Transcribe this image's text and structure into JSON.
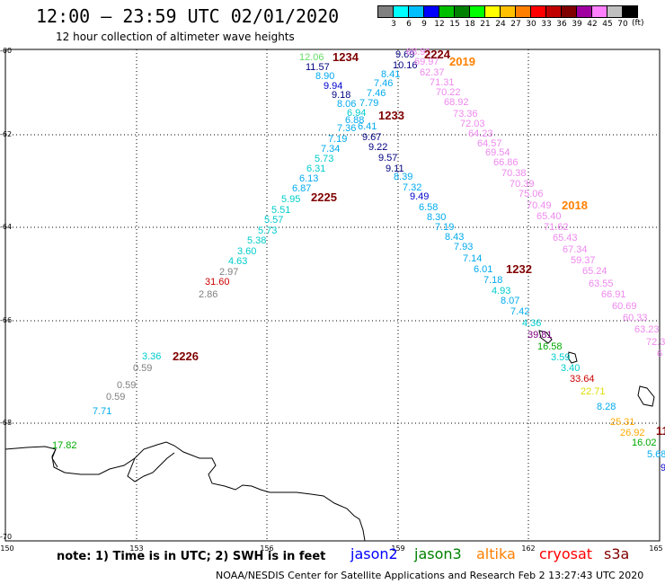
{
  "header": {
    "title": "12:00 – 23:59 UTC 02/01/2020",
    "subtitle": "12 hour collection of altimeter wave heights"
  },
  "colorbar": {
    "unit": "(ft)",
    "colors": [
      "#808080",
      "#00ffff",
      "#00bfff",
      "#0000ff",
      "#00c000",
      "#008000",
      "#00ff00",
      "#ffff00",
      "#ffc000",
      "#ff8000",
      "#ff0000",
      "#c00000",
      "#800000",
      "#a000a0",
      "#ff80ff",
      "#c0c0c0",
      "#000000"
    ],
    "labels": [
      "3",
      "6",
      "9",
      "12",
      "15",
      "18",
      "21",
      "24",
      "27",
      "30",
      "33",
      "36",
      "39",
      "42",
      "45",
      "70"
    ]
  },
  "axes": {
    "lat_labels": [
      "-60",
      "-62",
      "-64",
      "-66",
      "-68",
      "-70"
    ],
    "lon_labels": [
      "150",
      "153",
      "156",
      "159",
      "162",
      "165"
    ]
  },
  "legend": {
    "note": "note:  1) Time is in UTC;  2) SWH is in feet",
    "satellites": [
      {
        "name": "jason2",
        "color": "#0000ff"
      },
      {
        "name": "jason3",
        "color": "#008000"
      },
      {
        "name": "altika",
        "color": "#ff8000"
      },
      {
        "name": "cryosat",
        "color": "#ff0000"
      },
      {
        "name": "s3a",
        "color": "#800000"
      }
    ]
  },
  "credit": "NOAA/NESDIS Center for Satellite Applications and Research   Feb  2 13:27:43 UTC 2020",
  "passes": [
    {
      "label": "1234",
      "color": "#800000"
    },
    {
      "label": "2224",
      "color": "#800000"
    },
    {
      "label": "2019",
      "color": "#ff8000"
    },
    {
      "label": "1233",
      "color": "#800000"
    },
    {
      "label": "2225",
      "color": "#800000"
    },
    {
      "label": "2018",
      "color": "#ff8000"
    },
    {
      "label": "1232",
      "color": "#800000"
    },
    {
      "label": "2226",
      "color": "#800000"
    },
    {
      "label": "11",
      "color": "#800000"
    }
  ],
  "points": [
    {
      "v": "12.06",
      "c": "#66dd66"
    },
    {
      "v": "11.57",
      "c": "#000080"
    },
    {
      "v": "8.90",
      "c": "#00aaee"
    },
    {
      "v": "9.94",
      "c": "#0000cc"
    },
    {
      "v": "9.18",
      "c": "#000080"
    },
    {
      "v": "8.06",
      "c": "#00aaee"
    },
    {
      "v": "6.94",
      "c": "#00cccc"
    },
    {
      "v": "6.88",
      "c": "#00aaee"
    },
    {
      "v": "7.36",
      "c": "#00aaee"
    },
    {
      "v": "7.19",
      "c": "#00aaee"
    },
    {
      "v": "7.34",
      "c": "#00aaee"
    },
    {
      "v": "5.73",
      "c": "#00cccc"
    },
    {
      "v": "6.31",
      "c": "#00cccc"
    },
    {
      "v": "6.13",
      "c": "#00aaee"
    },
    {
      "v": "6.87",
      "c": "#00aaee"
    },
    {
      "v": "5.95",
      "c": "#00cccc"
    },
    {
      "v": "5.51",
      "c": "#00cccc"
    },
    {
      "v": "5.57",
      "c": "#00cccc"
    },
    {
      "v": "5.73",
      "c": "#00cccc"
    },
    {
      "v": "5.38",
      "c": "#00cccc"
    },
    {
      "v": "3.60",
      "c": "#00cccc"
    },
    {
      "v": "4.63",
      "c": "#00cccc"
    },
    {
      "v": "2.97",
      "c": "#808080"
    },
    {
      "v": "31.60",
      "c": "#cc0000"
    },
    {
      "v": "2.86",
      "c": "#808080"
    },
    {
      "v": "3.36",
      "c": "#00cccc"
    },
    {
      "v": "0.59",
      "c": "#808080"
    },
    {
      "v": "0.59",
      "c": "#808080"
    },
    {
      "v": "0.59",
      "c": "#808080"
    },
    {
      "v": "7.71",
      "c": "#00aaee"
    },
    {
      "v": "17.82",
      "c": "#00aa00"
    },
    {
      "v": "9.69",
      "c": "#000080"
    },
    {
      "v": "10.16",
      "c": "#000080"
    },
    {
      "v": "8.41",
      "c": "#00aaee"
    },
    {
      "v": "7.46",
      "c": "#00aaee"
    },
    {
      "v": "7.46",
      "c": "#00aaee"
    },
    {
      "v": "7.79",
      "c": "#00aaee"
    },
    {
      "v": "6.41",
      "c": "#00aaee"
    },
    {
      "v": "9.67",
      "c": "#000080"
    },
    {
      "v": "9.22",
      "c": "#000080"
    },
    {
      "v": "9.57",
      "c": "#000080"
    },
    {
      "v": "9.11",
      "c": "#000080"
    },
    {
      "v": "8.39",
      "c": "#00aaee"
    },
    {
      "v": "7.32",
      "c": "#00aaee"
    },
    {
      "v": "9.49",
      "c": "#0000cc"
    },
    {
      "v": "6.58",
      "c": "#00aaee"
    },
    {
      "v": "8.30",
      "c": "#00aaee"
    },
    {
      "v": "7.19",
      "c": "#00aaee"
    },
    {
      "v": "8.43",
      "c": "#00aaee"
    },
    {
      "v": "7.93",
      "c": "#00aaee"
    },
    {
      "v": "7.14",
      "c": "#00aaee"
    },
    {
      "v": "6.01",
      "c": "#00aaee"
    },
    {
      "v": "7.18",
      "c": "#00aaee"
    },
    {
      "v": "4.93",
      "c": "#00cccc"
    },
    {
      "v": "8.07",
      "c": "#00aaee"
    },
    {
      "v": "7.42",
      "c": "#00aaee"
    },
    {
      "v": "4.36",
      "c": "#00cccc"
    },
    {
      "v": "39.81",
      "c": "#800080"
    },
    {
      "v": "16.58",
      "c": "#00aa00"
    },
    {
      "v": "3.59",
      "c": "#00cccc"
    },
    {
      "v": "3.40",
      "c": "#00cccc"
    },
    {
      "v": "33.64",
      "c": "#cc0000"
    },
    {
      "v": "22.71",
      "c": "#dddd00"
    },
    {
      "v": "8.28",
      "c": "#00aaee"
    },
    {
      "v": "25.31",
      "c": "#ffaa00"
    },
    {
      "v": "26.92",
      "c": "#ffaa00"
    },
    {
      "v": "16.02",
      "c": "#00aa00"
    },
    {
      "v": "5.68",
      "c": "#00aaee"
    },
    {
      "v": "9",
      "c": "#0000cc"
    },
    {
      "v": "68.91",
      "c": "#ee88ee"
    },
    {
      "v": "69.97",
      "c": "#ee88ee"
    },
    {
      "v": "62.37",
      "c": "#ee88ee"
    },
    {
      "v": "71.31",
      "c": "#ee88ee"
    },
    {
      "v": "70.22",
      "c": "#ee88ee"
    },
    {
      "v": "68.92",
      "c": "#ee88ee"
    },
    {
      "v": "73.36",
      "c": "#ee88ee"
    },
    {
      "v": "72.03",
      "c": "#ee88ee"
    },
    {
      "v": "64.23",
      "c": "#ee88ee"
    },
    {
      "v": "64.57",
      "c": "#ee88ee"
    },
    {
      "v": "69.54",
      "c": "#ee88ee"
    },
    {
      "v": "66.86",
      "c": "#ee88ee"
    },
    {
      "v": "70.38",
      "c": "#ee88ee"
    },
    {
      "v": "70.39",
      "c": "#ee88ee"
    },
    {
      "v": "75.06",
      "c": "#ee88ee"
    },
    {
      "v": "70.49",
      "c": "#ee88ee"
    },
    {
      "v": "65.40",
      "c": "#ee88ee"
    },
    {
      "v": "71.62",
      "c": "#ee88ee"
    },
    {
      "v": "65.43",
      "c": "#ee88ee"
    },
    {
      "v": "67.34",
      "c": "#ee88ee"
    },
    {
      "v": "59.37",
      "c": "#ee88ee"
    },
    {
      "v": "65.24",
      "c": "#ee88ee"
    },
    {
      "v": "63.55",
      "c": "#ee88ee"
    },
    {
      "v": "66.91",
      "c": "#ee88ee"
    },
    {
      "v": "60.69",
      "c": "#ee88ee"
    },
    {
      "v": "60.33",
      "c": "#ee88ee"
    },
    {
      "v": "63.23",
      "c": "#ee88ee"
    },
    {
      "v": "72.3",
      "c": "#ee88ee"
    },
    {
      "v": "6",
      "c": "#ee88ee"
    }
  ]
}
